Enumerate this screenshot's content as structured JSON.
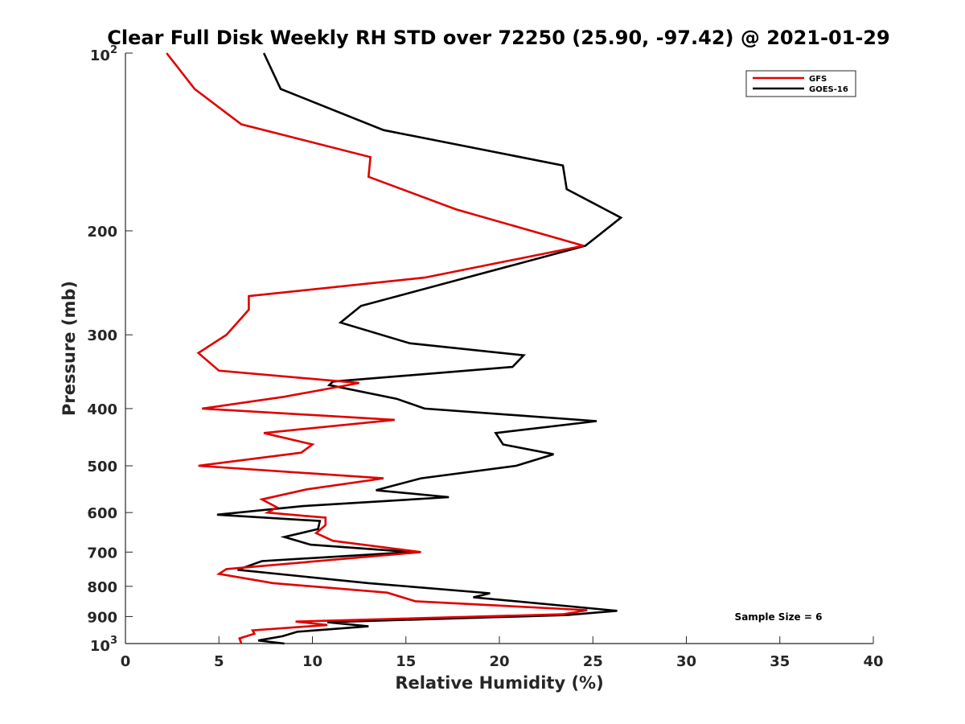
{
  "chart_data": {
    "type": "line",
    "title": "Clear Full Disk Weekly RH STD over 72250 (25.90, -97.42) @ 2021-01-29",
    "xlabel": "Relative Humidity (%)",
    "ylabel": "Pressure (mb)",
    "xlim": [
      0,
      40
    ],
    "ylim": [
      100,
      1000
    ],
    "y_scale": "log",
    "y_reversed": true,
    "x_ticks": [
      "0",
      "5",
      "10",
      "15",
      "20",
      "25",
      "30",
      "35",
      "40"
    ],
    "x_tick_values": [
      0,
      5,
      10,
      15,
      20,
      25,
      30,
      35,
      40
    ],
    "y_ticks": [
      {
        "value": 100,
        "base": "10",
        "exp": "2"
      },
      {
        "value": 200,
        "label": "200"
      },
      {
        "value": 300,
        "label": "300"
      },
      {
        "value": 400,
        "label": "400"
      },
      {
        "value": 500,
        "label": "500"
      },
      {
        "value": 600,
        "label": "600"
      },
      {
        "value": 700,
        "label": "700"
      },
      {
        "value": 800,
        "label": "800"
      },
      {
        "value": 900,
        "label": "900"
      },
      {
        "value": 1000,
        "base": "10",
        "exp": "3"
      }
    ],
    "legend_position": "top-right",
    "annotation": "Sample Size = 6",
    "grid": false,
    "series": [
      {
        "name": "GFS",
        "color": "#e00000",
        "points": [
          [
            2.2,
            100
          ],
          [
            3.7,
            115
          ],
          [
            6.2,
            132
          ],
          [
            13.1,
            150
          ],
          [
            13.0,
            162
          ],
          [
            17.7,
            184
          ],
          [
            24.5,
            212
          ],
          [
            16.0,
            240
          ],
          [
            6.6,
            258
          ],
          [
            6.6,
            272
          ],
          [
            5.4,
            300
          ],
          [
            3.9,
            322
          ],
          [
            5.0,
            345
          ],
          [
            12.5,
            362
          ],
          [
            8.5,
            382
          ],
          [
            4.1,
            400
          ],
          [
            14.4,
            418
          ],
          [
            7.4,
            440
          ],
          [
            10.0,
            460
          ],
          [
            9.4,
            475
          ],
          [
            3.9,
            500
          ],
          [
            13.8,
            525
          ],
          [
            9.7,
            548
          ],
          [
            7.3,
            570
          ],
          [
            8.1,
            588
          ],
          [
            7.6,
            600
          ],
          [
            10.7,
            612
          ],
          [
            10.7,
            630
          ],
          [
            10.2,
            650
          ],
          [
            11.1,
            670
          ],
          [
            15.8,
            700
          ],
          [
            5.4,
            748
          ],
          [
            5.0,
            762
          ],
          [
            7.9,
            790
          ],
          [
            14.0,
            820
          ],
          [
            15.5,
            848
          ],
          [
            24.7,
            878
          ],
          [
            23.4,
            892
          ],
          [
            9.1,
            918
          ],
          [
            10.8,
            930
          ],
          [
            6.8,
            950
          ],
          [
            6.9,
            962
          ],
          [
            6.1,
            980
          ],
          [
            6.2,
            1000
          ]
        ]
      },
      {
        "name": "GOES-16",
        "color": "#000000",
        "points": [
          [
            7.4,
            100
          ],
          [
            8.3,
            115
          ],
          [
            13.8,
            135
          ],
          [
            23.4,
            155
          ],
          [
            23.6,
            170
          ],
          [
            26.5,
            190
          ],
          [
            24.6,
            212
          ],
          [
            12.6,
            268
          ],
          [
            11.5,
            286
          ],
          [
            15.2,
            310
          ],
          [
            21.3,
            325
          ],
          [
            20.7,
            340
          ],
          [
            11.1,
            360
          ],
          [
            10.9,
            365
          ],
          [
            14.5,
            385
          ],
          [
            16.0,
            400
          ],
          [
            25.2,
            420
          ],
          [
            19.8,
            440
          ],
          [
            20.2,
            460
          ],
          [
            22.9,
            478
          ],
          [
            20.9,
            500
          ],
          [
            15.8,
            525
          ],
          [
            13.4,
            550
          ],
          [
            17.3,
            565
          ],
          [
            9.5,
            585
          ],
          [
            4.9,
            605
          ],
          [
            10.4,
            620
          ],
          [
            10.3,
            640
          ],
          [
            8.5,
            660
          ],
          [
            9.9,
            680
          ],
          [
            15.3,
            700
          ],
          [
            7.3,
            725
          ],
          [
            6.0,
            750
          ],
          [
            13.0,
            790
          ],
          [
            19.5,
            822
          ],
          [
            18.6,
            835
          ],
          [
            26.3,
            880
          ],
          [
            23.6,
            895
          ],
          [
            10.8,
            920
          ],
          [
            13.0,
            935
          ],
          [
            9.2,
            955
          ],
          [
            8.4,
            972
          ],
          [
            7.1,
            988
          ],
          [
            8.5,
            1000
          ]
        ]
      }
    ]
  }
}
